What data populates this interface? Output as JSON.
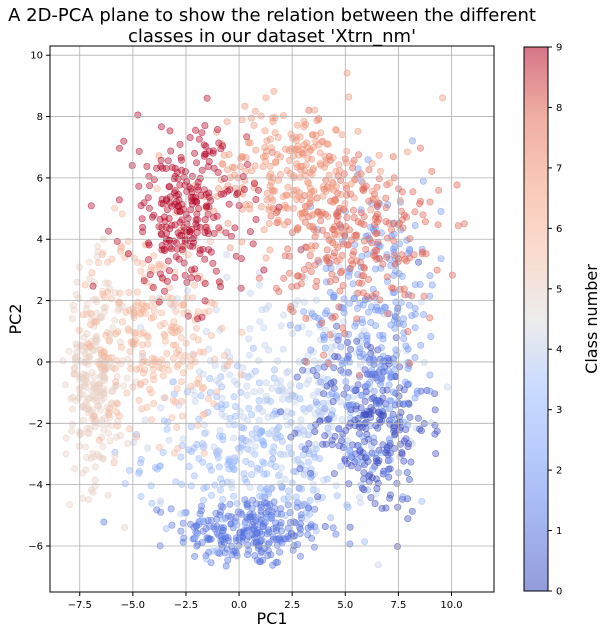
{
  "chart_data": {
    "type": "scatter",
    "title_lines": [
      "A 2D-PCA plane to show the relation between the different",
      "classes in our dataset 'Xtrn_nm'"
    ],
    "xlabel": "PC1",
    "ylabel": "PC2",
    "xlim": [
      -8.9,
      12.0
    ],
    "ylim": [
      -7.5,
      10.3
    ],
    "xticks": [
      -7.5,
      -5.0,
      -2.5,
      0.0,
      2.5,
      5.0,
      7.5,
      10.0
    ],
    "xtick_labels": [
      "−7.5",
      "−5.0",
      "−2.5",
      "0.0",
      "2.5",
      "5.0",
      "7.5",
      "10.0"
    ],
    "yticks": [
      -6,
      -4,
      -2,
      0,
      2,
      4,
      6,
      8,
      10
    ],
    "ytick_labels": [
      "−6",
      "−4",
      "−2",
      "0",
      "2",
      "4",
      "6",
      "8",
      "10"
    ],
    "grid": true,
    "colormap": "coolwarm",
    "alpha": 0.4,
    "colorbar": {
      "label": "Class number",
      "range": [
        0,
        9
      ],
      "ticks": [
        0,
        1,
        2,
        3,
        4,
        5,
        6,
        7,
        8,
        9
      ],
      "tick_labels": [
        "0",
        "1",
        "2",
        "3",
        "4",
        "5",
        "6",
        "7",
        "8",
        "9"
      ]
    },
    "classes": [
      {
        "class": 0,
        "center": [
          6.2,
          -2.0
        ],
        "spread": [
          1.6,
          1.8
        ]
      },
      {
        "class": 1,
        "center": [
          0.5,
          -5.5
        ],
        "spread": [
          2.0,
          0.7
        ]
      },
      {
        "class": 2,
        "center": [
          6.5,
          1.5
        ],
        "spread": [
          1.8,
          2.6
        ]
      },
      {
        "class": 3,
        "center": [
          1.0,
          -3.0
        ],
        "spread": [
          3.2,
          1.6
        ]
      },
      {
        "class": 4,
        "center": [
          2.5,
          -1.0
        ],
        "spread": [
          3.5,
          2.2
        ]
      },
      {
        "class": 5,
        "center": [
          -6.8,
          -0.5
        ],
        "spread": [
          0.8,
          2.0
        ]
      },
      {
        "class": 6,
        "center": [
          -4.0,
          1.0
        ],
        "spread": [
          1.9,
          1.9
        ]
      },
      {
        "class": 7,
        "center": [
          2.5,
          6.2
        ],
        "spread": [
          2.3,
          1.3
        ]
      },
      {
        "class": 8,
        "center": [
          5.5,
          4.0
        ],
        "spread": [
          2.3,
          1.8
        ]
      },
      {
        "class": 9,
        "center": [
          -2.5,
          4.8
        ],
        "spread": [
          1.7,
          1.6
        ]
      }
    ]
  }
}
